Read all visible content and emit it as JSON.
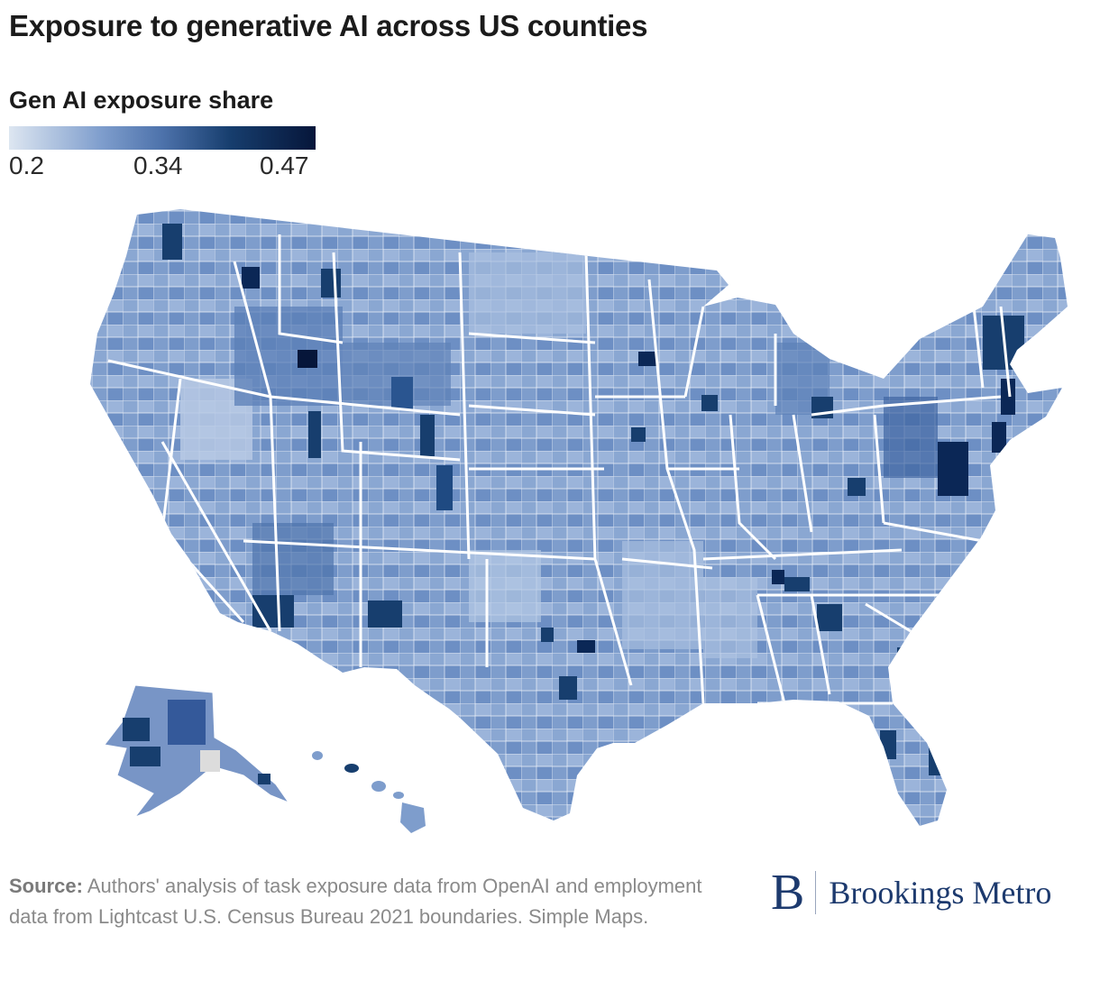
{
  "title": "Exposure to generative AI across US counties",
  "legend": {
    "title": "Gen AI exposure share",
    "ticks": [
      "0.2",
      "0.34",
      "0.47"
    ],
    "min": 0.2,
    "mid": 0.34,
    "max": 0.47,
    "colors": [
      "#dde6f1",
      "#7f9ecd",
      "#4d72ab",
      "#173e6e",
      "#06163a"
    ]
  },
  "map": {
    "region": "United States counties",
    "state_border_color": "#ffffff",
    "no_data_color": "#dcdcdc"
  },
  "source": {
    "label": "Source:",
    "text": "Authors' analysis of task exposure data from OpenAI and employment data from Lightcast U.S. Census Bureau 2021 boundaries. Simple Maps."
  },
  "logo": {
    "mark": "B",
    "text": "Brookings Metro",
    "color": "#1d3a6e"
  }
}
